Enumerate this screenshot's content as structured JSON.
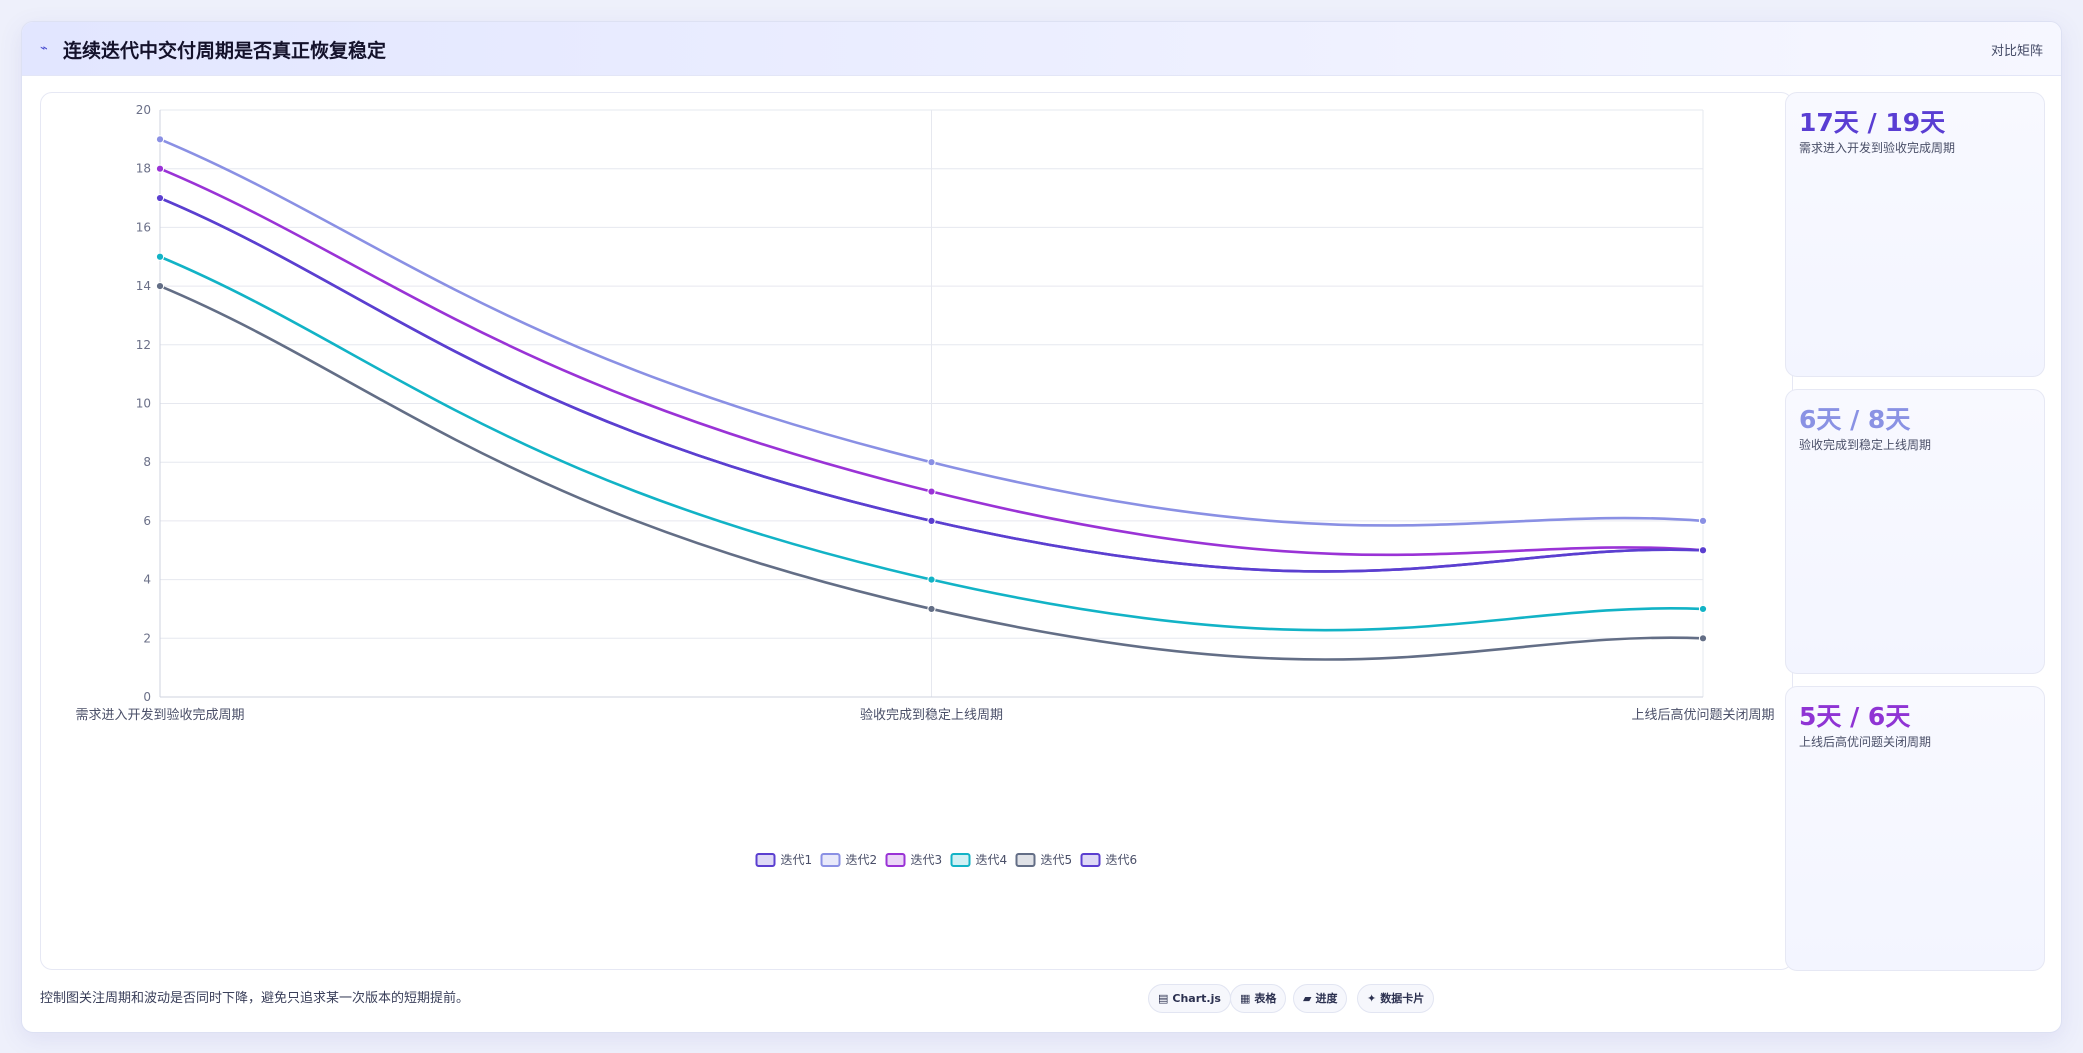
{
  "header": {
    "title": "连续迭代中交付周期是否真正恢复稳定",
    "matrix_link": "对比矩阵"
  },
  "chart_data": {
    "type": "line",
    "categories": [
      "需求进入开发到验收完成周期",
      "验收完成到稳定上线周期",
      "上线后高优问题关闭周期"
    ],
    "ylim": [
      0,
      20
    ],
    "yticks": [
      0,
      2,
      4,
      6,
      8,
      10,
      12,
      14,
      16,
      18,
      20
    ],
    "grid": true,
    "legend_position": "bottom",
    "series": [
      {
        "name": "迭代1",
        "values": [
          17,
          6,
          5
        ],
        "color": "#5b3fd0"
      },
      {
        "name": "迭代2",
        "values": [
          19,
          8,
          6
        ],
        "color": "#8a90e4"
      },
      {
        "name": "迭代3",
        "values": [
          18,
          7,
          5
        ],
        "color": "#9a33d6"
      },
      {
        "name": "迭代4",
        "values": [
          15,
          4,
          3
        ],
        "color": "#12b3c6"
      },
      {
        "name": "迭代5",
        "values": [
          14,
          3,
          2
        ],
        "color": "#636e86"
      },
      {
        "name": "迭代6",
        "values": [
          17,
          6,
          5
        ],
        "color": "#5b3fd0"
      }
    ]
  },
  "stats": [
    {
      "value": "17天 / 19天",
      "label": "需求进入开发到验收完成周期",
      "color": "#5a3ed3"
    },
    {
      "value": "6天 / 8天",
      "label": "验收完成到稳定上线周期",
      "color": "#8a92e4"
    },
    {
      "value": "5天 / 6天",
      "label": "上线后高优问题关闭周期",
      "color": "#8f34d4"
    }
  ],
  "footer": {
    "note": "控制图关注周期和波动是否同时下降，避免只追求某一次版本的短期提前。",
    "pills": [
      {
        "icon": "bar-chart-icon",
        "glyph": "▤",
        "label": "Chart.js"
      },
      {
        "icon": "table-icon",
        "glyph": "▦",
        "label": "表格"
      },
      {
        "icon": "progress-icon",
        "glyph": "▰",
        "label": "进度"
      },
      {
        "icon": "sparkle-icon",
        "glyph": "✦",
        "label": "数据卡片"
      }
    ]
  }
}
